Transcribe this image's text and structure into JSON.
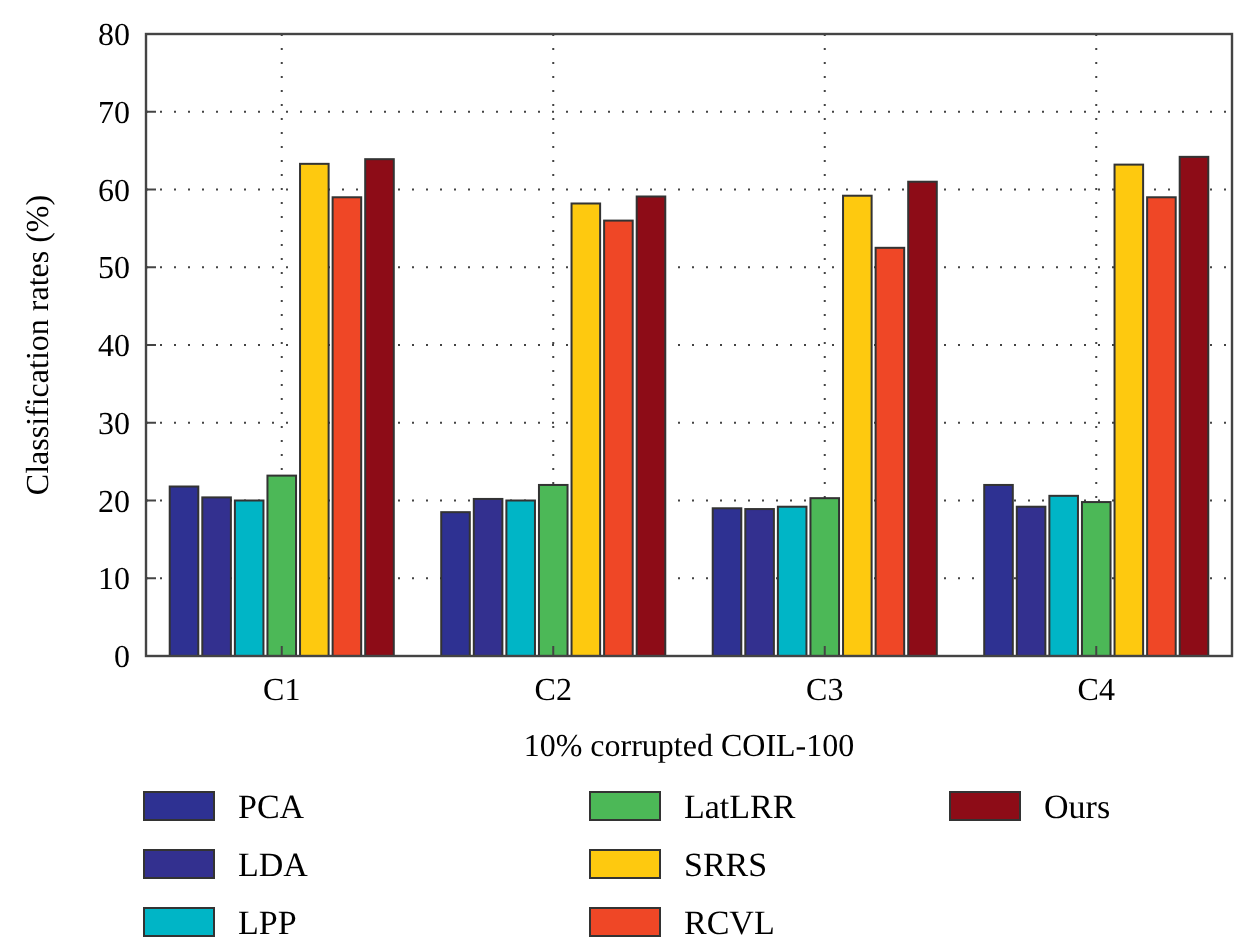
{
  "chart_data": {
    "type": "bar",
    "xlabel": "10% corrupted COIL-100",
    "ylabel": "Classification rates (%)",
    "categories": [
      "C1",
      "C2",
      "C3",
      "C4"
    ],
    "series": [
      {
        "name": "PCA",
        "color": "#2e3192",
        "values": [
          21.8,
          18.5,
          19,
          22
        ]
      },
      {
        "name": "LDA",
        "color": "#33308f",
        "values": [
          20.4,
          20.2,
          18.9,
          19.2
        ]
      },
      {
        "name": "LPP",
        "color": "#00b5c6",
        "values": [
          20,
          20,
          19.2,
          20.6
        ]
      },
      {
        "name": "LatLRR",
        "color": "#4cb857",
        "values": [
          23.2,
          22,
          20.3,
          19.8
        ]
      },
      {
        "name": "SRRS",
        "color": "#fec90f",
        "values": [
          63.3,
          58.2,
          59.2,
          63.2
        ]
      },
      {
        "name": "RCVL",
        "color": "#ef4726",
        "values": [
          59,
          56,
          52.5,
          59
        ]
      },
      {
        "name": "Ours",
        "color": "#8d0c17",
        "values": [
          63.9,
          59.1,
          61,
          64.2
        ]
      }
    ],
    "ylim": [
      0,
      80
    ],
    "yticks": [
      0,
      10,
      20,
      30,
      40,
      50,
      60,
      70,
      80
    ],
    "grid": true,
    "legend": "bottom"
  }
}
